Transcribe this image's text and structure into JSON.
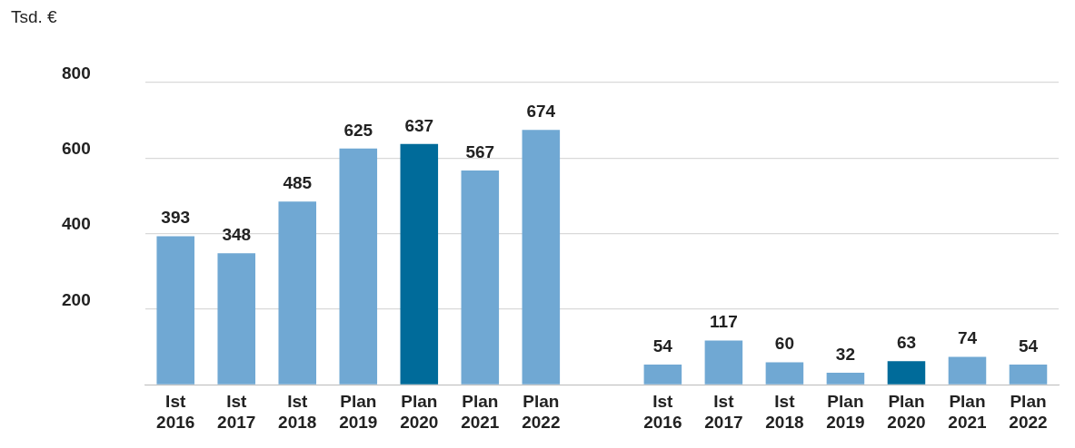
{
  "chart_data": {
    "type": "bar",
    "ylabel": "Tsd. €",
    "categories": [
      "Ist 2016",
      "Ist 2017",
      "Ist 2018",
      "Plan 2019",
      "Plan 2020",
      "Plan 2021",
      "Plan 2022",
      null,
      "Ist 2016",
      "Ist 2017",
      "Ist 2018",
      "Plan 2019",
      "Plan 2020",
      "Plan 2021",
      "Plan 2022"
    ],
    "values": [
      393,
      348,
      485,
      625,
      637,
      567,
      674,
      null,
      54,
      117,
      60,
      32,
      63,
      74,
      54
    ],
    "colors": [
      "#70a8d3",
      "#70a8d3",
      "#70a8d3",
      "#70a8d3",
      "#006b9a",
      "#70a8d3",
      "#70a8d3",
      "#70a8d3",
      "#70a8d3",
      "#70a8d3",
      "#70a8d3",
      "#70a8d3",
      "#006b9a",
      "#70a8d3",
      "#70a8d3"
    ],
    "ylim": [
      0,
      800
    ],
    "yticks": [
      {
        "value": 0,
        "label": null
      },
      200,
      400,
      600,
      800
    ],
    "grid": "y",
    "data_labels": true,
    "legend": false
  }
}
